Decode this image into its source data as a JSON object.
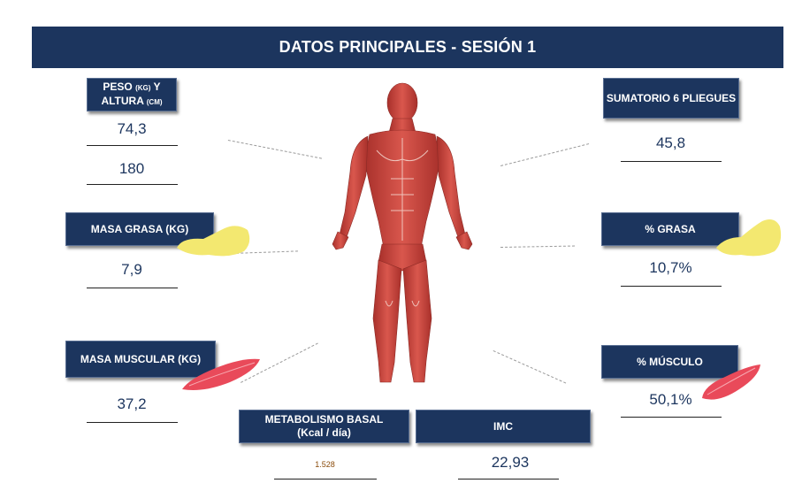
{
  "header": {
    "title": "DATOS PRINCIPALES - SESIÓN 1"
  },
  "peso_altura": {
    "label_line1_a": "PESO ",
    "label_line1_unit": "(KG)",
    "label_line1_b": " Y",
    "label_line2_a": "ALTURA ",
    "label_line2_unit": "(CM)",
    "peso": "74,3",
    "altura": "180"
  },
  "masa_grasa": {
    "label": "MASA GRASA (KG)",
    "value": "7,9"
  },
  "masa_muscular": {
    "label": "MASA MUSCULAR (KG)",
    "value": "37,2"
  },
  "sumatorio": {
    "label": "SUMATORIO 6 PLIEGUES",
    "value": "45,8"
  },
  "grasa_pct": {
    "label": "% GRASA",
    "value": "10,7%"
  },
  "musculo_pct": {
    "label": "% MÚSCULO",
    "value": "50,1%"
  },
  "metabolismo": {
    "label_line1": "METABOLISMO BASAL",
    "label_line2": "(Kcal / día)",
    "value": "1.528"
  },
  "imc": {
    "label": "IMC",
    "value": "22,93"
  },
  "colors": {
    "navy": "#1c355e",
    "fat_yellow": "#f3e870",
    "muscle_red": "#e94a5a",
    "body_red": "#c9463d"
  },
  "icons": [
    "anatomy-figure",
    "fat-icon",
    "muscle-icon"
  ]
}
